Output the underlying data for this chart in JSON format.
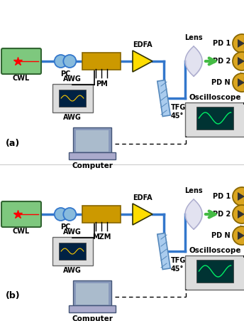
{
  "fig_width": 3.44,
  "fig_height": 4.51,
  "dpi": 100,
  "bg_color": "#ffffff",
  "colors": {
    "laser_body": "#7ec87e",
    "line_blue": "#3377cc",
    "line_black": "#000000",
    "pm_body": "#cc9900",
    "edfa_yellow": "#ffdd00",
    "tfg_blue": "#5588bb",
    "lens_gray": "#cccccc",
    "arrow_green": "#44bb44",
    "pd_gold": "#daa520",
    "osc_body": "#cccccc",
    "osc_screen": "#003333",
    "osc_wave": "#00ee66",
    "awg_body": "#cccccc",
    "awg_screen": "#003366",
    "awg_wave": "#ffcc00",
    "comp_body": "#8899cc",
    "text_black": "#000000",
    "pc_fill": "#88bbdd",
    "pc_edge": "#3377cc"
  },
  "panel_a": {
    "mod_label": "PM",
    "label": "(a)"
  },
  "panel_b": {
    "mod_label": "MZM",
    "label": "(b)"
  }
}
